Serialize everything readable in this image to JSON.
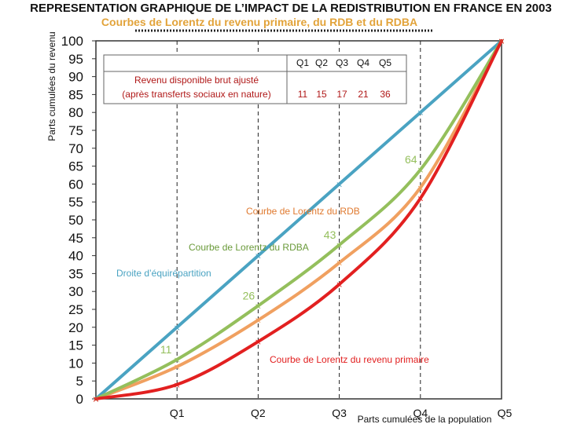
{
  "chart_data": {
    "type": "line",
    "title": "REPRESENTATION GRAPHIQUE DE L’IMPACT DE LA REDISTRIBUTION EN FRANCE EN 2003",
    "subtitle": "Courbes de Lorentz du revenu primaire, du RDB et du RDBA",
    "ylabel": "Parts cumulées du revenu",
    "xlabel": "Parts cumulées de la population",
    "categories": [
      "",
      "Q1",
      "Q2",
      "Q3",
      "Q4",
      "Q5"
    ],
    "x": [
      0,
      1,
      2,
      3,
      4,
      5
    ],
    "xlim": [
      0,
      5
    ],
    "ylim": [
      0,
      100
    ],
    "yticks": [
      0,
      5,
      10,
      15,
      20,
      25,
      30,
      35,
      40,
      45,
      50,
      55,
      60,
      65,
      70,
      75,
      80,
      85,
      90,
      95,
      100
    ],
    "grid": "vertical dashed at quintiles",
    "series": [
      {
        "name": "Droite d’équirépartition",
        "color": "#4aa3c2",
        "values": [
          0,
          20,
          40,
          60,
          80,
          100
        ]
      },
      {
        "name": "Courbe de Lorentz du RDB",
        "color": "#f0a060",
        "values": [
          0,
          9,
          22,
          38,
          59,
          100
        ]
      },
      {
        "name": "Courbe de Lorentz du RDBA",
        "color": "#94bf5c",
        "values": [
          0,
          11,
          26,
          43,
          64,
          100
        ]
      },
      {
        "name": "Courbe de Lorentz du revenu primaire",
        "color": "#e22020",
        "values": [
          0,
          4,
          16,
          32,
          56,
          100
        ]
      }
    ],
    "data_labels": [
      {
        "text": "11",
        "series": "Courbe de Lorentz du RDBA",
        "x": 1,
        "y": 11
      },
      {
        "text": "26",
        "series": "Courbe de Lorentz du RDBA",
        "x": 2,
        "y": 26
      },
      {
        "text": "43",
        "series": "Courbe de Lorentz du RDBA",
        "x": 3,
        "y": 43
      },
      {
        "text": "64",
        "series": "Courbe de Lorentz du RDBA",
        "x": 4,
        "y": 64
      }
    ],
    "annotations": [
      {
        "text": "Droite d’équirépartition",
        "color": "#4aa3c2"
      },
      {
        "text": "Courbe de Lorentz du RDB",
        "color": "#e07a30"
      },
      {
        "text": "Courbe de Lorentz du RDBA",
        "color": "#6a9a3a"
      },
      {
        "text": "Courbe de Lorentz du revenu primaire",
        "color": "#e22020"
      }
    ],
    "legend_table": {
      "label_line1": "Revenu disponible brut ajusté",
      "label_line2": "(après transferts sociaux en nature)",
      "headers": [
        "Q1",
        "Q2",
        "Q3",
        "Q4",
        "Q5"
      ],
      "values": [
        "11",
        "15",
        "17",
        "21",
        "36"
      ]
    }
  }
}
